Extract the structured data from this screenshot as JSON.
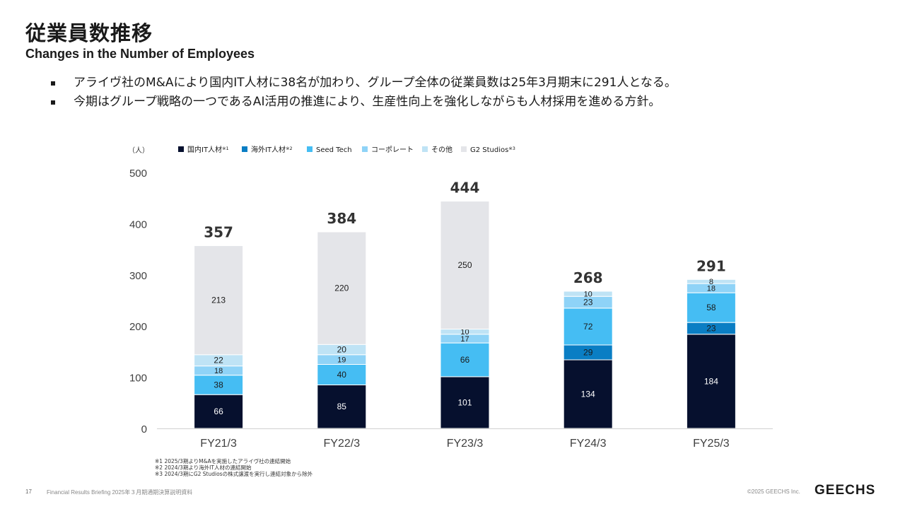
{
  "header": {
    "title_jp": "従業員数推移",
    "title_en": "Changes in the Number of Employees"
  },
  "bullets": [
    "アライヴ社のM&Aにより国内IT人材に38名が加わり、グループ全体の従業員数は25年3月期末に291人となる。",
    "今期はグループ戦略の一つであるAI活用の推進により、生産性向上を強化しながらも人材採用を進める方針。"
  ],
  "chart_data": {
    "type": "bar",
    "stacked": true,
    "unit_label": "（人）",
    "categories": [
      "FY21/3",
      "FY22/3",
      "FY23/3",
      "FY24/3",
      "FY25/3"
    ],
    "ylim": [
      0,
      500
    ],
    "yticks": [
      0,
      100,
      200,
      300,
      400,
      500
    ],
    "grid": false,
    "legend_position": "top",
    "series": [
      {
        "name": "国内IT人材",
        "note": "※1",
        "color": "#06102e",
        "label_color": "#ffffff",
        "values": [
          66,
          85,
          101,
          134,
          184
        ]
      },
      {
        "name": "海外IT人材",
        "note": "※2",
        "color": "#0a7ec4",
        "label_color": "#1a1a1a",
        "values": [
          0,
          0,
          0,
          29,
          23
        ]
      },
      {
        "name": "Seed Tech",
        "note": "",
        "color": "#45bdf3",
        "label_color": "#1a1a1a",
        "values": [
          38,
          40,
          66,
          72,
          58
        ]
      },
      {
        "name": "コーポレート",
        "note": "",
        "color": "#8fd3f7",
        "label_color": "#1a1a1a",
        "values": [
          18,
          19,
          17,
          23,
          18
        ]
      },
      {
        "name": "その他",
        "note": "",
        "color": "#bfe3f5",
        "label_color": "#1a1a1a",
        "values": [
          22,
          20,
          10,
          10,
          8
        ]
      },
      {
        "name": "G2 Studios",
        "note": "※3",
        "color": "#e4e5e9",
        "label_color": "#1a1a1a",
        "values": [
          213,
          220,
          250,
          0,
          0
        ]
      }
    ],
    "totals": [
      357,
      384,
      444,
      268,
      291
    ]
  },
  "notes": [
    "※1 2025/3期よりM&Aを実施したアライヴ社の連結開始",
    "※2 2024/3期より海外IT人材の連結開始",
    "※3 2024/3期にG2 Studiosの株式譲渡を実行し連結対象から除外"
  ],
  "footer": {
    "page": "17",
    "text": "Financial Results Briefing 2025年３月期通期決算説明資料",
    "copyright": "©2025 GEECHS Inc.",
    "logo": "GEECHS"
  }
}
